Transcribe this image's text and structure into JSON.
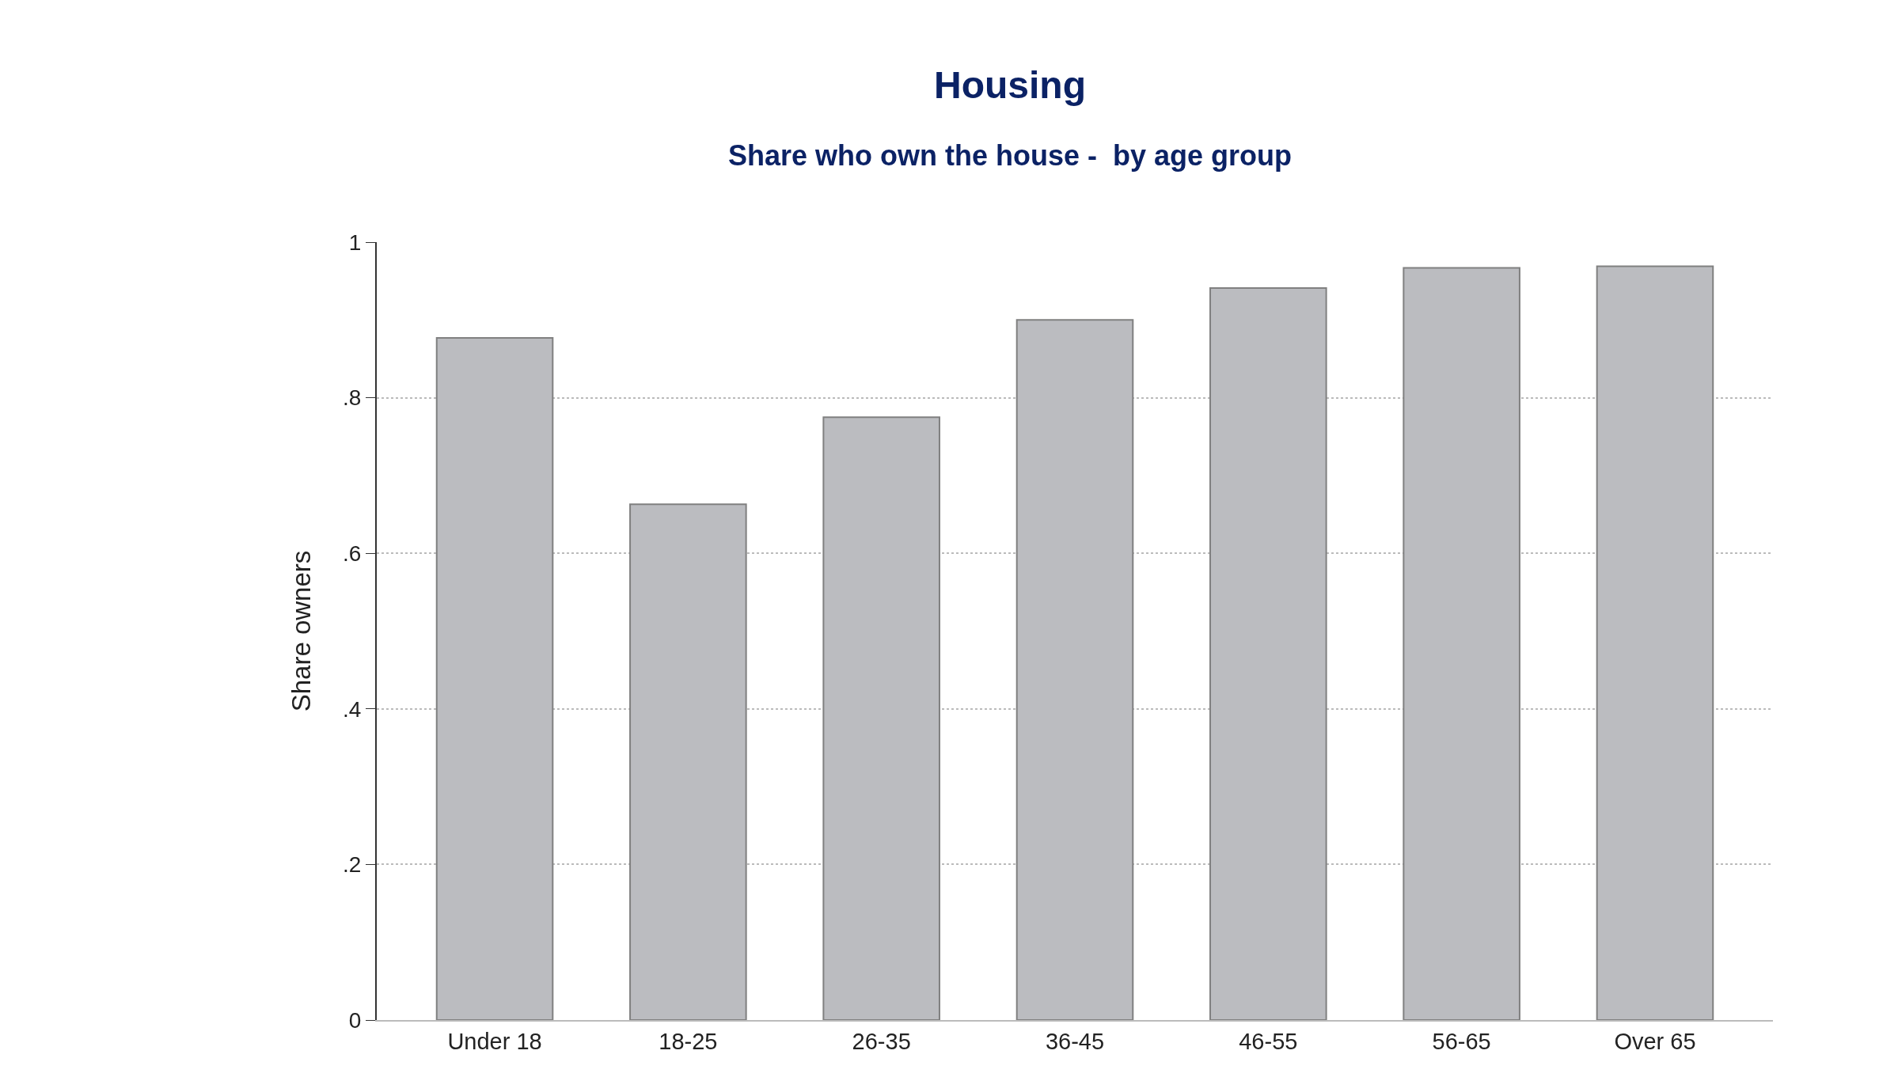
{
  "chart_data": {
    "type": "bar",
    "title": "Housing",
    "subtitle": "Share who own the house -  by age group",
    "ylabel": "Share owners",
    "categories": [
      "Under 18",
      "18-25",
      "26-35",
      "36-45",
      "46-55",
      "56-65",
      "Over 65"
    ],
    "values": [
      0.877,
      0.663,
      0.775,
      0.9,
      0.941,
      0.967,
      0.969
    ],
    "color": "#bbbcc0",
    "ylim": [
      0,
      1
    ],
    "yticks": [
      0,
      {
        "value": 0.2,
        "label": ".2"
      },
      {
        "value": 0.4,
        "label": ".4"
      },
      {
        "value": 0.6,
        "label": ".6"
      },
      {
        "value": 0.8,
        "label": ".8"
      },
      1
    ],
    "grid": "y"
  }
}
